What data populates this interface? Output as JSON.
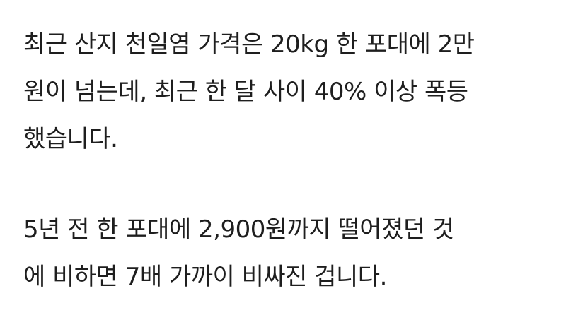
{
  "article": {
    "paragraphs": [
      {
        "lines": [
          "최근 산지 천일염 가격은 20kg 한 포대에 2만",
          "원이 넘는데, 최근 한 달 사이 40% 이상 폭등",
          "했습니다."
        ]
      },
      {
        "lines": [
          "5년 전 한 포대에 2,900원까지 떨어졌던 것",
          "에 비하면 7배 가까이 비싸진 겁니다."
        ]
      }
    ]
  }
}
